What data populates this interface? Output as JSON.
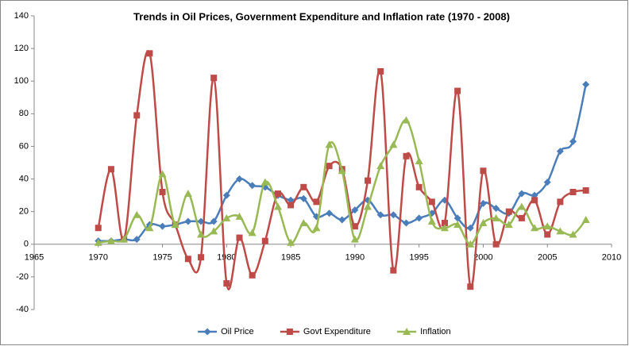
{
  "chart_data": {
    "type": "scatter-smooth",
    "title": "Trends in Oil Prices, Government Expenditure and Inflation rate (1970 - 2008)",
    "x": [
      1970,
      1971,
      1972,
      1973,
      1974,
      1975,
      1976,
      1977,
      1978,
      1979,
      1980,
      1981,
      1982,
      1983,
      1984,
      1985,
      1986,
      1987,
      1988,
      1989,
      1990,
      1991,
      1992,
      1993,
      1994,
      1995,
      1996,
      1997,
      1998,
      1999,
      2000,
      2001,
      2002,
      2003,
      2004,
      2005,
      2006,
      2007,
      2008
    ],
    "series": [
      {
        "name": "Oil Price",
        "color": "#4a7ebb",
        "marker": "diamond",
        "values": [
          2,
          2,
          3,
          3,
          12,
          11,
          12,
          14,
          14,
          14,
          30,
          40,
          36,
          35,
          30,
          27,
          28,
          17,
          19,
          15,
          21,
          27,
          18,
          18,
          13,
          16,
          19,
          27,
          16,
          10,
          25,
          22,
          19,
          31,
          30,
          38,
          57,
          63,
          98
        ]
      },
      {
        "name": "Govt Expenditure",
        "color": "#be4b48",
        "marker": "square",
        "values": [
          10,
          46,
          3,
          79,
          117,
          32,
          12,
          -9,
          -8,
          102,
          -24,
          4,
          -19,
          2,
          31,
          24,
          35,
          26,
          48,
          46,
          11,
          39,
          106,
          -16,
          54,
          35,
          26,
          13,
          94,
          -26,
          45,
          0,
          20,
          16,
          27,
          6,
          26,
          32,
          33
        ]
      },
      {
        "name": "Inflation",
        "color": "#98b954",
        "marker": "triangle",
        "values": [
          1,
          2,
          3,
          18,
          10,
          43,
          12,
          31,
          6,
          8,
          16,
          17,
          7,
          38,
          23,
          1,
          13,
          10,
          61,
          45,
          3,
          23,
          48,
          61,
          76,
          51,
          14,
          10,
          12,
          0,
          13,
          16,
          12,
          23,
          10,
          11,
          8,
          6,
          15
        ]
      }
    ],
    "xlim": [
      1965,
      2010
    ],
    "xticks": [
      1965,
      1970,
      1975,
      1980,
      1985,
      1990,
      1995,
      2000,
      2005,
      2010
    ],
    "ylim": [
      -40,
      140
    ],
    "yticks": [
      -40,
      -20,
      0,
      20,
      40,
      60,
      80,
      100,
      120,
      140
    ],
    "grid": false,
    "legend": "bottom"
  }
}
